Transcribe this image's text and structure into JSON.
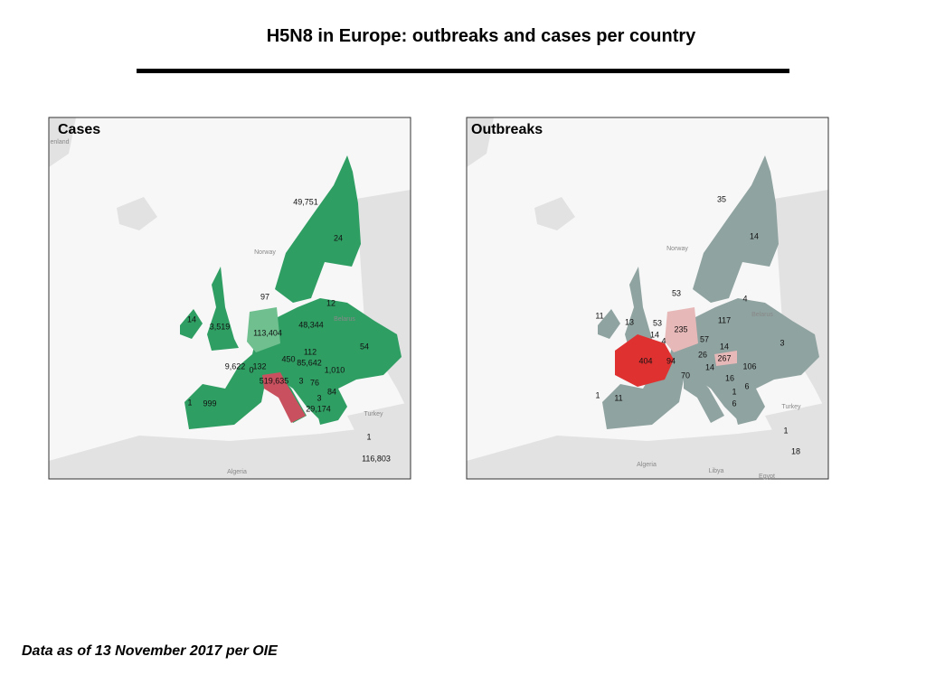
{
  "header": {
    "title": "H5N8 in Europe: outbreaks and cases per country"
  },
  "panels": [
    {
      "title": "Cases",
      "labels": [
        "49,751",
        "24",
        "97",
        "12",
        "14",
        "3,519",
        "48,344",
        "113,404",
        "0",
        "112",
        "54",
        "9,622",
        "132",
        "450",
        "85,642",
        "1,010",
        "519,635",
        "3",
        "76",
        "84",
        "1",
        "999",
        "3",
        "29,174",
        "1",
        "116,803"
      ],
      "places": [
        "enland",
        "Norway",
        "Belarus",
        "Turkey",
        "Algeria"
      ]
    },
    {
      "title": "Outbreaks",
      "labels": [
        "35",
        "14",
        "53",
        "4",
        "11",
        "13",
        "53",
        "235",
        "117",
        "14",
        "4",
        "57",
        "14",
        "3",
        "26",
        "267",
        "404",
        "94",
        "14",
        "106",
        "70",
        "16",
        "6",
        "1",
        "11",
        "1",
        "6",
        "1",
        "18"
      ],
      "places": [
        "Norway",
        "Belarus",
        "Turkey",
        "Algeria",
        "Libya",
        "Egypt"
      ]
    }
  ],
  "footer": "Data as of 13 November 2017 per OIE"
}
